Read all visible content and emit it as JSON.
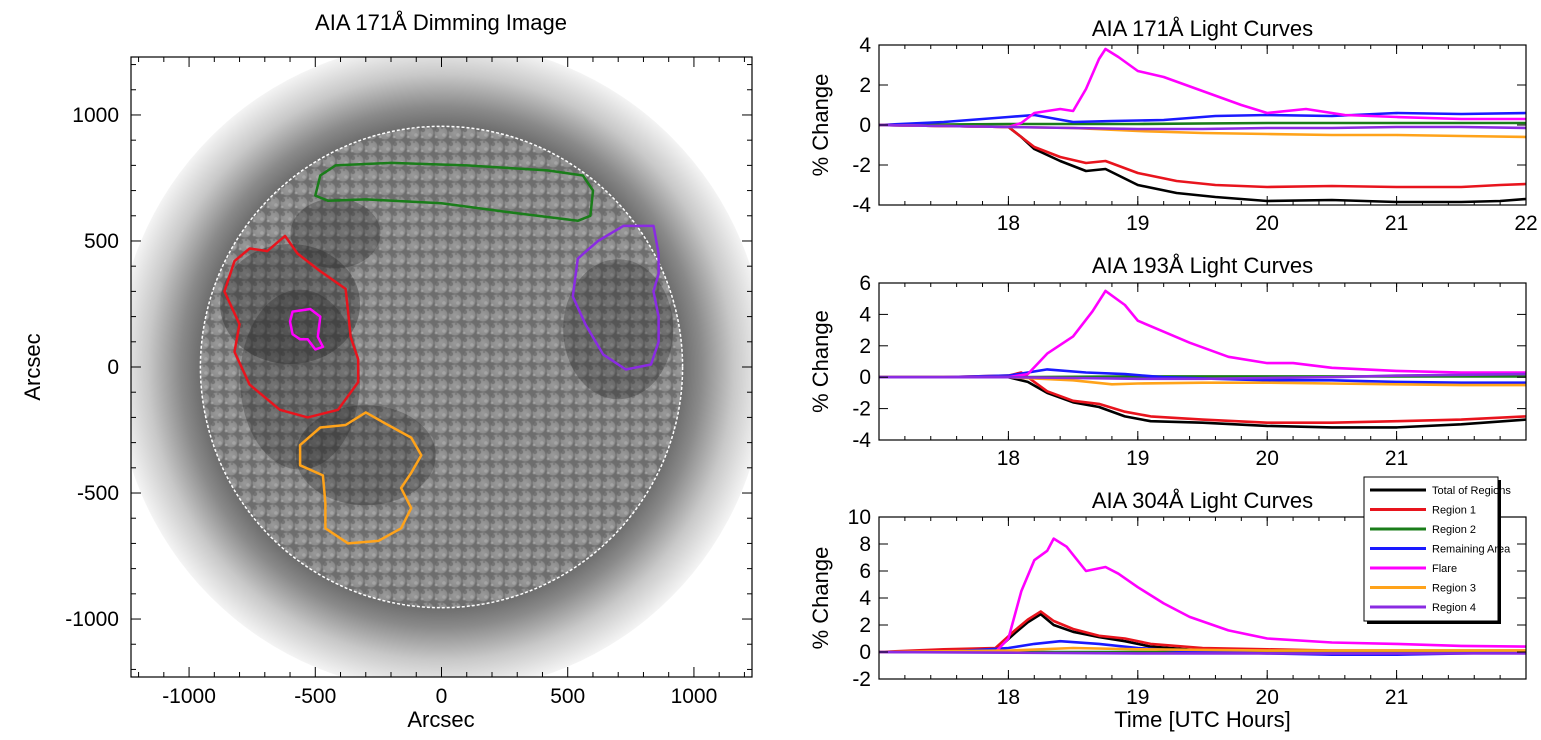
{
  "chart_data": [
    {
      "type": "image",
      "title": "AIA 171Å Dimming Image",
      "xlabel": "Arcsec",
      "ylabel": "Arcsec",
      "xlim": [
        -1230,
        1230
      ],
      "ylim": [
        -1230,
        1230
      ],
      "xticks": [
        -1000,
        -500,
        0,
        500,
        1000
      ],
      "yticks": [
        -1000,
        -500,
        0,
        500,
        1000
      ],
      "solar_disk_radius": 955,
      "contours": [
        {
          "name": "Region 1",
          "color": "#e8141d",
          "points": [
            [
              -820,
              420
            ],
            [
              -760,
              470
            ],
            [
              -690,
              460
            ],
            [
              -620,
              520
            ],
            [
              -570,
              450
            ],
            [
              -480,
              380
            ],
            [
              -380,
              310
            ],
            [
              -370,
              220
            ],
            [
              -360,
              120
            ],
            [
              -330,
              30
            ],
            [
              -330,
              -60
            ],
            [
              -410,
              -170
            ],
            [
              -530,
              -200
            ],
            [
              -640,
              -170
            ],
            [
              -760,
              -70
            ],
            [
              -820,
              60
            ],
            [
              -800,
              170
            ],
            [
              -860,
              300
            ]
          ]
        },
        {
          "name": "Region 2",
          "color": "#1a7d1a",
          "points": [
            [
              -500,
              680
            ],
            [
              -480,
              760
            ],
            [
              -420,
              800
            ],
            [
              -200,
              810
            ],
            [
              100,
              800
            ],
            [
              420,
              780
            ],
            [
              560,
              760
            ],
            [
              600,
              700
            ],
            [
              590,
              600
            ],
            [
              540,
              580
            ],
            [
              300,
              610
            ],
            [
              0,
              650
            ],
            [
              -300,
              665
            ],
            [
              -450,
              660
            ]
          ]
        },
        {
          "name": "Flare",
          "color": "#ff00ff",
          "points": [
            [
              -600,
              180
            ],
            [
              -590,
              220
            ],
            [
              -520,
              230
            ],
            [
              -480,
              200
            ],
            [
              -490,
              120
            ],
            [
              -470,
              80
            ],
            [
              -500,
              70
            ],
            [
              -530,
              110
            ],
            [
              -560,
              110
            ],
            [
              -590,
              130
            ]
          ]
        },
        {
          "name": "Region 3",
          "color": "#ffa31a",
          "points": [
            [
              -560,
              -310
            ],
            [
              -480,
              -240
            ],
            [
              -380,
              -230
            ],
            [
              -300,
              -180
            ],
            [
              -230,
              -220
            ],
            [
              -120,
              -280
            ],
            [
              -80,
              -350
            ],
            [
              -120,
              -420
            ],
            [
              -160,
              -480
            ],
            [
              -120,
              -560
            ],
            [
              -160,
              -640
            ],
            [
              -250,
              -690
            ],
            [
              -370,
              -700
            ],
            [
              -460,
              -640
            ],
            [
              -460,
              -540
            ],
            [
              -470,
              -430
            ],
            [
              -560,
              -390
            ]
          ]
        },
        {
          "name": "Region 4",
          "color": "#8a2be2",
          "points": [
            [
              540,
              430
            ],
            [
              620,
              500
            ],
            [
              720,
              560
            ],
            [
              840,
              560
            ],
            [
              860,
              450
            ],
            [
              860,
              370
            ],
            [
              840,
              300
            ],
            [
              860,
              200
            ],
            [
              860,
              100
            ],
            [
              830,
              10
            ],
            [
              730,
              -10
            ],
            [
              640,
              50
            ],
            [
              570,
              170
            ],
            [
              520,
              280
            ]
          ]
        }
      ]
    },
    {
      "type": "line",
      "title": "AIA 171Å Light Curves",
      "xlabel": "",
      "ylabel": "% Change",
      "xlim": [
        17,
        22
      ],
      "ylim": [
        -4,
        4
      ],
      "xticks": [
        18,
        19,
        20,
        21,
        22
      ],
      "yticks": [
        -4,
        -2,
        0,
        2,
        4
      ],
      "series": [
        {
          "name": "Total of Regions",
          "color": "#000000",
          "x": [
            17,
            17.5,
            18,
            18.1,
            18.2,
            18.4,
            18.6,
            18.75,
            19,
            19.3,
            19.6,
            20,
            20.5,
            21,
            21.5,
            21.8,
            22
          ],
          "y": [
            0,
            -0.05,
            -0.1,
            -0.6,
            -1.2,
            -1.8,
            -2.3,
            -2.2,
            -3.0,
            -3.4,
            -3.6,
            -3.8,
            -3.75,
            -3.85,
            -3.85,
            -3.8,
            -3.7
          ]
        },
        {
          "name": "Region 1",
          "color": "#e8141d",
          "x": [
            17,
            17.5,
            18,
            18.1,
            18.2,
            18.4,
            18.6,
            18.75,
            19,
            19.3,
            19.6,
            20,
            20.5,
            21,
            21.5,
            21.8,
            22
          ],
          "y": [
            0,
            -0.05,
            -0.1,
            -0.6,
            -1.1,
            -1.6,
            -1.9,
            -1.8,
            -2.4,
            -2.8,
            -3.0,
            -3.1,
            -3.05,
            -3.1,
            -3.1,
            -3.0,
            -2.95
          ]
        },
        {
          "name": "Region 2",
          "color": "#1a7d1a",
          "x": [
            17,
            18,
            19,
            20,
            21,
            22
          ],
          "y": [
            0,
            0.05,
            0.05,
            0.1,
            0.1,
            0.1
          ]
        },
        {
          "name": "Remaining Area",
          "color": "#1a1aff",
          "x": [
            17,
            17.5,
            18,
            18.2,
            18.5,
            18.8,
            19.2,
            19.6,
            20,
            20.5,
            21,
            21.5,
            22
          ],
          "y": [
            0,
            0.15,
            0.4,
            0.5,
            0.15,
            0.2,
            0.25,
            0.45,
            0.5,
            0.45,
            0.6,
            0.55,
            0.6
          ]
        },
        {
          "name": "Flare",
          "color": "#ff00ff",
          "x": [
            17,
            17.5,
            18,
            18.1,
            18.2,
            18.4,
            18.5,
            18.6,
            18.7,
            18.75,
            18.85,
            19,
            19.2,
            19.5,
            19.8,
            20,
            20.3,
            20.6,
            21,
            21.5,
            22
          ],
          "y": [
            0,
            -0.05,
            -0.1,
            0.1,
            0.6,
            0.8,
            0.7,
            1.8,
            3.3,
            3.8,
            3.4,
            2.7,
            2.4,
            1.7,
            1.0,
            0.6,
            0.8,
            0.5,
            0.4,
            0.3,
            0.3
          ]
        },
        {
          "name": "Region 3",
          "color": "#ffa31a",
          "x": [
            17,
            17.5,
            18,
            18.5,
            19,
            19.5,
            20,
            20.5,
            21,
            21.5,
            22
          ],
          "y": [
            0,
            -0.05,
            -0.1,
            -0.15,
            -0.3,
            -0.4,
            -0.45,
            -0.5,
            -0.5,
            -0.55,
            -0.6
          ]
        },
        {
          "name": "Region 4",
          "color": "#8a2be2",
          "x": [
            17,
            17.5,
            18,
            18.5,
            19,
            19.5,
            20,
            20.5,
            21,
            21.5,
            22
          ],
          "y": [
            0,
            -0.05,
            -0.1,
            -0.15,
            -0.2,
            -0.2,
            -0.15,
            -0.15,
            -0.1,
            -0.1,
            -0.15
          ]
        }
      ]
    },
    {
      "type": "line",
      "title": "AIA 193Å Light Curves",
      "xlabel": "",
      "ylabel": "% Change",
      "xlim": [
        17,
        22
      ],
      "ylim": [
        -4,
        6
      ],
      "xticks": [
        18,
        19,
        20,
        21
      ],
      "yticks": [
        -4,
        -2,
        0,
        2,
        4,
        6
      ],
      "series": [
        {
          "name": "Total of Regions",
          "color": "#000000",
          "x": [
            17,
            17.5,
            18,
            18.15,
            18.3,
            18.5,
            18.7,
            18.9,
            19.1,
            19.5,
            20,
            20.5,
            21,
            21.5,
            22
          ],
          "y": [
            0,
            0,
            0,
            -0.3,
            -1.0,
            -1.6,
            -1.9,
            -2.5,
            -2.8,
            -2.9,
            -3.1,
            -3.2,
            -3.2,
            -3.0,
            -2.7
          ]
        },
        {
          "name": "Region 1",
          "color": "#e8141d",
          "x": [
            17,
            17.5,
            18,
            18.1,
            18.15,
            18.3,
            18.5,
            18.7,
            18.9,
            19.1,
            19.5,
            20,
            20.5,
            21,
            21.5,
            22
          ],
          "y": [
            0,
            0,
            0.1,
            0.3,
            0,
            -0.9,
            -1.5,
            -1.7,
            -2.2,
            -2.5,
            -2.7,
            -2.9,
            -2.9,
            -2.8,
            -2.7,
            -2.5
          ]
        },
        {
          "name": "Region 2",
          "color": "#1a7d1a",
          "x": [
            17,
            18,
            19,
            20,
            21,
            22
          ],
          "y": [
            0,
            0,
            0.05,
            0.05,
            0.05,
            0.05
          ]
        },
        {
          "name": "Remaining Area",
          "color": "#1a1aff",
          "x": [
            17,
            17.5,
            18,
            18.3,
            18.6,
            18.9,
            19.2,
            19.6,
            20,
            20.5,
            21,
            21.5,
            22
          ],
          "y": [
            0,
            0,
            0.1,
            0.5,
            0.3,
            0.2,
            0,
            -0.1,
            -0.2,
            -0.2,
            -0.3,
            -0.35,
            -0.35
          ]
        },
        {
          "name": "Flare",
          "color": "#ff00ff",
          "x": [
            17,
            17.5,
            18,
            18.15,
            18.3,
            18.5,
            18.65,
            18.75,
            18.9,
            19,
            19.2,
            19.4,
            19.7,
            20,
            20.2,
            20.5,
            21,
            21.5,
            22
          ],
          "y": [
            0,
            0,
            0,
            0.2,
            1.5,
            2.6,
            4.2,
            5.5,
            4.6,
            3.6,
            2.9,
            2.2,
            1.3,
            0.9,
            0.9,
            0.6,
            0.4,
            0.3,
            0.3
          ]
        },
        {
          "name": "Region 3",
          "color": "#ffa31a",
          "x": [
            17,
            17.5,
            18,
            18.5,
            18.8,
            19,
            19.5,
            20,
            20.5,
            21,
            21.5,
            22
          ],
          "y": [
            0,
            0,
            0,
            -0.2,
            -0.45,
            -0.4,
            -0.35,
            -0.35,
            -0.4,
            -0.45,
            -0.5,
            -0.5
          ]
        },
        {
          "name": "Region 4",
          "color": "#8a2be2",
          "x": [
            17,
            17.5,
            18,
            18.5,
            19,
            19.5,
            20,
            20.5,
            21,
            21.5,
            22
          ],
          "y": [
            0,
            0,
            0,
            -0.05,
            -0.1,
            -0.1,
            -0.05,
            0,
            0.1,
            0.15,
            0.2
          ]
        }
      ]
    },
    {
      "type": "line",
      "title": "AIA 304Å Light Curves",
      "xlabel": "Time [UTC Hours]",
      "ylabel": "% Change",
      "xlim": [
        17,
        22
      ],
      "ylim": [
        -2,
        10
      ],
      "xticks": [
        18,
        19,
        20,
        21
      ],
      "yticks": [
        -2,
        0,
        2,
        4,
        6,
        8,
        10
      ],
      "legend": "top-right",
      "series": [
        {
          "name": "Total of Regions",
          "color": "#000000",
          "x": [
            17,
            17.5,
            17.9,
            18.05,
            18.15,
            18.25,
            18.35,
            18.5,
            18.7,
            18.9,
            19.1,
            19.5,
            20,
            20.5,
            21,
            21.5,
            22
          ],
          "y": [
            0,
            0,
            0.1,
            1.4,
            2.2,
            2.8,
            2.0,
            1.5,
            1.1,
            0.8,
            0.4,
            0.1,
            0,
            -0.1,
            -0.1,
            0,
            0
          ]
        },
        {
          "name": "Region 1",
          "color": "#e8141d",
          "x": [
            17,
            17.5,
            17.9,
            18.05,
            18.15,
            18.25,
            18.35,
            18.5,
            18.7,
            18.9,
            19.1,
            19.5,
            20,
            20.5,
            21,
            21.5,
            22
          ],
          "y": [
            0,
            0.2,
            0.3,
            1.6,
            2.4,
            3.0,
            2.3,
            1.7,
            1.2,
            1.0,
            0.6,
            0.3,
            0.2,
            0.1,
            0.1,
            0.1,
            0.1
          ]
        },
        {
          "name": "Region 2",
          "color": "#1a7d1a",
          "x": [
            17,
            18,
            19,
            20,
            21,
            22
          ],
          "y": [
            0,
            0,
            0,
            0,
            0,
            0
          ]
        },
        {
          "name": "Remaining Area",
          "color": "#1a1aff",
          "x": [
            17,
            17.5,
            18,
            18.2,
            18.4,
            18.7,
            19,
            19.3,
            19.6,
            20,
            20.5,
            21,
            21.5,
            22
          ],
          "y": [
            0,
            0,
            0.3,
            0.6,
            0.8,
            0.6,
            0.3,
            0.1,
            0,
            -0.1,
            -0.2,
            -0.2,
            -0.1,
            0
          ]
        },
        {
          "name": "Flare",
          "color": "#ff00ff",
          "x": [
            17,
            17.5,
            17.9,
            18,
            18.1,
            18.2,
            18.3,
            18.35,
            18.45,
            18.6,
            18.75,
            18.85,
            19,
            19.2,
            19.4,
            19.7,
            20,
            20.5,
            21,
            21.5,
            22
          ],
          "y": [
            0,
            0,
            0,
            1.0,
            4.5,
            6.8,
            7.5,
            8.4,
            7.8,
            6.0,
            6.3,
            5.8,
            4.8,
            3.6,
            2.6,
            1.6,
            1.0,
            0.7,
            0.6,
            0.45,
            0.4
          ]
        },
        {
          "name": "Region 3",
          "color": "#ffa31a",
          "x": [
            17,
            18,
            18.5,
            19,
            20,
            21,
            22
          ],
          "y": [
            0,
            0.1,
            0.3,
            0.2,
            0.1,
            0.1,
            0.1
          ]
        },
        {
          "name": "Region 4",
          "color": "#8a2be2",
          "x": [
            17,
            18,
            19,
            20,
            21,
            22
          ],
          "y": [
            0,
            -0.05,
            -0.1,
            -0.1,
            -0.1,
            -0.1
          ]
        }
      ]
    }
  ]
}
